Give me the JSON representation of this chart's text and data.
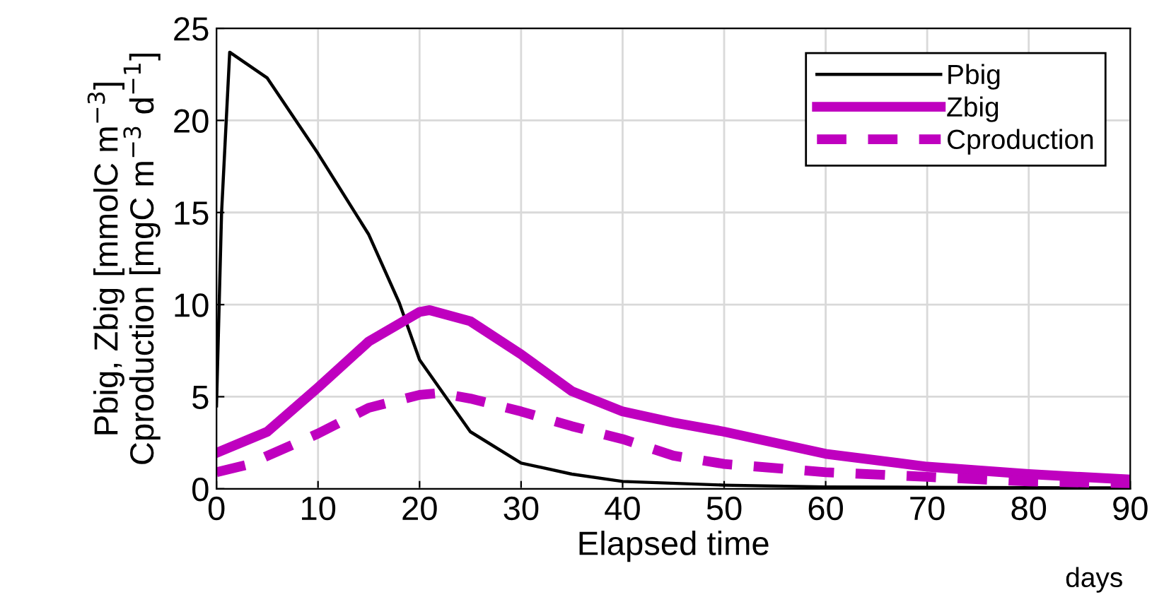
{
  "chart_data": {
    "type": "line",
    "xlabel": "Elapsed time",
    "ylabel": "Pbig, Zbig [mmolC m$^{−3}$]\nCproduction [mgC m$^{−3}$ d$^{−1}$]",
    "annotations": [
      "days"
    ],
    "xlim": [
      0,
      90
    ],
    "ylim": [
      0,
      25
    ],
    "xticks": [
      0,
      10,
      20,
      30,
      40,
      50,
      60,
      70,
      80,
      90
    ],
    "yticks": [
      0,
      5,
      10,
      15,
      20,
      25
    ],
    "grid": true,
    "legend": "top right",
    "marker": "none",
    "series": [
      {
        "name": "Pbig",
        "color": "#000000",
        "line_style": "solid",
        "x": [
          0,
          0.5,
          1.3,
          5,
          10,
          15,
          18,
          20,
          25,
          30,
          35,
          40,
          50,
          60,
          70,
          80,
          90
        ],
        "values": [
          4.5,
          15,
          23.7,
          22.3,
          18.2,
          13.8,
          10.1,
          7.0,
          3.1,
          1.4,
          0.8,
          0.4,
          0.2,
          0.1,
          0.08,
          0.06,
          0.05
        ]
      },
      {
        "name": "Zbig",
        "color": "#bf00bf",
        "line_style": "solid",
        "x": [
          0,
          5,
          10,
          15,
          20,
          21,
          25,
          30,
          35,
          40,
          45,
          50,
          60,
          70,
          80,
          90
        ],
        "values": [
          1.95,
          3.1,
          5.5,
          8.0,
          9.6,
          9.7,
          9.1,
          7.3,
          5.3,
          4.2,
          3.6,
          3.1,
          1.9,
          1.2,
          0.8,
          0.5
        ]
      },
      {
        "name": "Cproduction",
        "color": "#bf00bf",
        "line_style": "dashed",
        "x": [
          0,
          3,
          10,
          15,
          20,
          22,
          25,
          30,
          35,
          40,
          45,
          50,
          60,
          70,
          80,
          90
        ],
        "values": [
          0.9,
          1.3,
          3.0,
          4.4,
          5.1,
          5.2,
          4.9,
          4.2,
          3.4,
          2.7,
          1.8,
          1.35,
          0.9,
          0.65,
          0.4,
          0.3
        ]
      }
    ]
  }
}
